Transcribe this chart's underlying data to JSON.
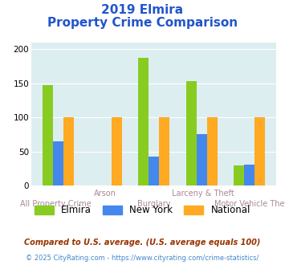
{
  "title_line1": "2019 Elmira",
  "title_line2": "Property Crime Comparison",
  "categories": [
    "All Property Crime",
    "Arson",
    "Burglary",
    "Larceny & Theft",
    "Motor Vehicle Theft"
  ],
  "elmira": [
    147,
    0,
    187,
    153,
    29
  ],
  "newyork": [
    65,
    0,
    43,
    75,
    31
  ],
  "national": [
    100,
    100,
    100,
    100,
    100
  ],
  "color_elmira": "#88cc22",
  "color_newyork": "#4488ee",
  "color_national": "#ffaa22",
  "color_bg_plot": "#ddeef0",
  "color_bg_fig": "#ffffff",
  "ylim": [
    0,
    210
  ],
  "yticks": [
    0,
    50,
    100,
    150,
    200
  ],
  "bar_width": 0.22,
  "title_color": "#2255cc",
  "footnote1": "Compared to U.S. average. (U.S. average equals 100)",
  "footnote2": "© 2025 CityRating.com - https://www.cityrating.com/crime-statistics/",
  "footnote1_color": "#993300",
  "footnote2_color": "#4488cc",
  "legend_labels": [
    "Elmira",
    "New York",
    "National"
  ],
  "xlabel_color": "#aa8899"
}
